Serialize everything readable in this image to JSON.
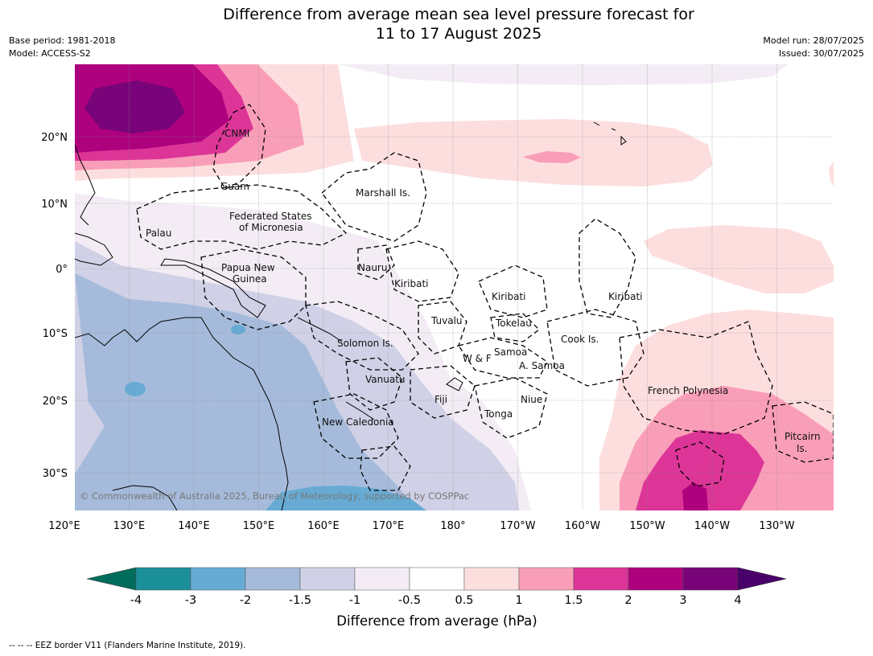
{
  "title_line1": "Difference from average mean sea level pressure forecast for",
  "title_line2": "11 to 17 August 2025",
  "meta_left": [
    "Base period: 1981-2018",
    "Model: ACCESS-S2"
  ],
  "meta_right": [
    "Model run: 28/07/2025",
    "Issued: 30/07/2025"
  ],
  "lon_labels": [
    "120°E",
    "130°E",
    "140°E",
    "150°E",
    "160°E",
    "170°E",
    "180°",
    "170°W",
    "160°W",
    "150°W",
    "140°W",
    "130°W"
  ],
  "lat_labels": [
    "20°N",
    "10°N",
    "0°",
    "10°S",
    "20°S",
    "30°S"
  ],
  "regions": [
    "CNMI",
    "Guam",
    "Marshall Is.",
    "Federated States",
    "of Micronesia",
    "Palau",
    "Papua New",
    "Guinea",
    "Nauru",
    "Kiribati",
    "Kiribati",
    "Kiribati",
    "Tuvalu",
    "Tokelau",
    "Solomon Is.",
    "Samoa",
    "W & F",
    "A. Samoa",
    "Cook Is.",
    "Vanuatu",
    "Fiji",
    "Niue",
    "Tonga",
    "French Polynesia",
    "New Caledonia",
    "Pitcairn",
    "Is."
  ],
  "copyright": "© Commonwealth of Australia 2025, Bureau of Meteorology, supported by COSPPac",
  "colorbar": {
    "ticks": [
      "-4",
      "-3",
      "-2",
      "-1.5",
      "-1",
      "-0.5",
      "0.5",
      "1",
      "1.5",
      "2",
      "3",
      "4"
    ],
    "colors": [
      "#1b9098",
      "#67abd4",
      "#a6bbdb",
      "#d0d1e6",
      "#f3ecf5",
      "#ffffff",
      "#fddede",
      "#f99eb8",
      "#dc3597",
      "#ad017e",
      "#790479"
    ],
    "under_color": "#006d5c",
    "over_color": "#49006a",
    "label": "Difference from average (hPa)"
  },
  "footer": "--  --  -- EEZ border V11 (Flanders Marine Institute, 2019)."
}
